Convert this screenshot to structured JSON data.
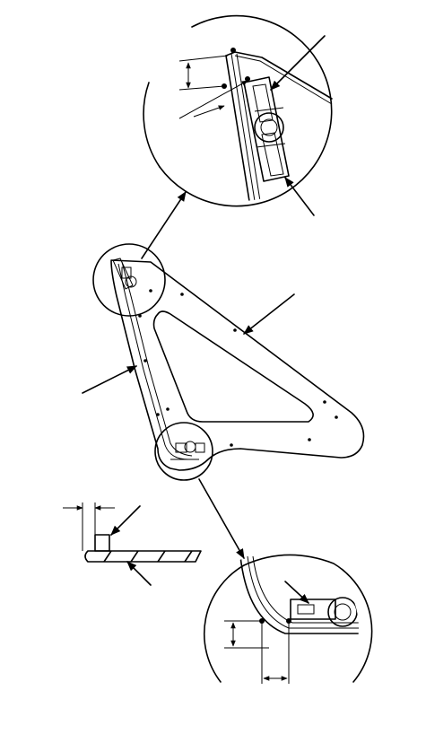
{
  "figure": {
    "background": "#ffffff",
    "ink": "#000000",
    "parts": {
      "main_bracket": "triangular-bracket-panel",
      "upper_detail": "upper-corner-magnified-detail",
      "lower_detail": "lower-corner-magnified-detail",
      "section_view": "edge-section-view"
    }
  }
}
